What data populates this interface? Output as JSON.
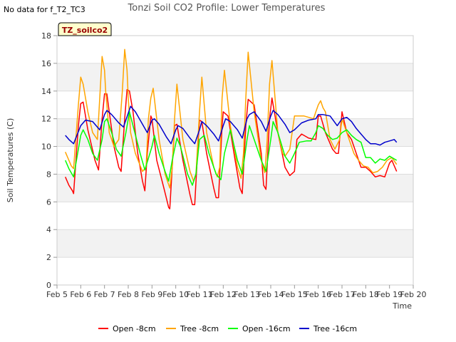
{
  "no_data_note": "No data for f_T2_TC3",
  "chart_data": {
    "type": "line",
    "title": "Tonzi Soil CO2 Profile: Lower Temperatures",
    "xlabel": "Time",
    "ylabel": "Soil Temperatures (C)",
    "badge": "TZ_soilco2",
    "xlim": [
      5,
      20
    ],
    "ylim": [
      0,
      18
    ],
    "grid": true,
    "legend_position": "bottom",
    "x_ticks": [
      {
        "v": 5,
        "label": "Feb 5"
      },
      {
        "v": 6,
        "label": "Feb 6"
      },
      {
        "v": 7,
        "label": "Feb 7"
      },
      {
        "v": 8,
        "label": "Feb 8"
      },
      {
        "v": 9,
        "label": "Feb 9"
      },
      {
        "v": 10,
        "label": "Feb 10"
      },
      {
        "v": 11,
        "label": "Feb 11"
      },
      {
        "v": 12,
        "label": "Feb 12"
      },
      {
        "v": 13,
        "label": "Feb 13"
      },
      {
        "v": 14,
        "label": "Feb 14"
      },
      {
        "v": 15,
        "label": "Feb 15"
      },
      {
        "v": 16,
        "label": "Feb 16"
      },
      {
        "v": 17,
        "label": "Feb 17"
      },
      {
        "v": 18,
        "label": "Feb 18"
      },
      {
        "v": 19,
        "label": "Feb 19"
      },
      {
        "v": 20,
        "label": "Feb 20"
      }
    ],
    "y_ticks": [
      0,
      2,
      4,
      6,
      8,
      10,
      12,
      14,
      16,
      18
    ],
    "series": [
      {
        "name": "Open -8cm",
        "color": "#ff0000",
        "x": [
          5.35,
          5.5,
          5.65,
          5.7,
          5.9,
          6.0,
          6.1,
          6.3,
          6.6,
          6.75,
          6.9,
          7.0,
          7.1,
          7.2,
          7.4,
          7.6,
          7.7,
          7.85,
          7.95,
          8.05,
          8.2,
          8.4,
          8.6,
          8.7,
          8.8,
          8.95,
          9.0,
          9.2,
          9.5,
          9.7,
          9.75,
          9.85,
          9.95,
          10.05,
          10.3,
          10.6,
          10.7,
          10.8,
          10.95,
          11.0,
          11.1,
          11.3,
          11.6,
          11.7,
          11.8,
          11.95,
          12.0,
          12.2,
          12.5,
          12.7,
          12.8,
          12.95,
          13.05,
          13.3,
          13.6,
          13.7,
          13.8,
          13.95,
          14.05,
          14.3,
          14.6,
          14.8,
          15.0,
          15.1,
          15.3,
          15.6,
          15.9,
          16.0,
          16.1,
          16.3,
          16.6,
          16.75,
          16.85,
          17.0,
          17.2,
          17.4,
          17.6,
          17.8,
          18.0,
          18.2,
          18.4,
          18.6,
          18.8,
          19.0,
          19.1,
          19.3
        ],
        "y": [
          7.8,
          7.2,
          6.8,
          6.6,
          11.5,
          13.1,
          13.2,
          11.2,
          9.0,
          8.3,
          12.0,
          13.8,
          13.8,
          12.5,
          10.0,
          8.5,
          8.2,
          12.0,
          14.1,
          14.0,
          12.5,
          9.5,
          7.5,
          6.8,
          9.5,
          12.2,
          12.0,
          9.0,
          7.0,
          5.6,
          5.5,
          8.5,
          11.5,
          11.6,
          9.0,
          6.5,
          5.8,
          5.8,
          10.5,
          11.9,
          11.8,
          9.5,
          7.0,
          6.3,
          6.3,
          11.5,
          12.5,
          12.2,
          9.0,
          7.0,
          6.6,
          11.5,
          13.4,
          13.0,
          9.5,
          7.2,
          6.9,
          12.0,
          13.5,
          11.0,
          8.5,
          7.9,
          8.2,
          10.5,
          10.9,
          10.6,
          10.5,
          12.2,
          12.2,
          11.0,
          9.8,
          9.5,
          9.5,
          12.5,
          11.0,
          10.5,
          9.5,
          8.5,
          8.5,
          8.2,
          7.8,
          7.9,
          7.8,
          8.8,
          9.0,
          8.2
        ]
      },
      {
        "name": "Tree -8cm",
        "color": "#ffa500",
        "x": [
          5.35,
          5.5,
          5.6,
          5.7,
          5.9,
          6.0,
          6.1,
          6.3,
          6.5,
          6.7,
          6.8,
          6.9,
          7.0,
          7.05,
          7.2,
          7.4,
          7.6,
          7.75,
          7.85,
          7.95,
          8.0,
          8.1,
          8.3,
          8.6,
          8.75,
          8.85,
          8.95,
          9.05,
          9.3,
          9.55,
          9.75,
          9.85,
          9.95,
          10.05,
          10.3,
          10.6,
          10.75,
          10.85,
          11.0,
          11.1,
          11.3,
          11.6,
          11.75,
          11.85,
          11.95,
          12.05,
          12.3,
          12.6,
          12.75,
          12.85,
          12.95,
          13.05,
          13.3,
          13.6,
          13.75,
          13.85,
          13.95,
          14.05,
          14.3,
          14.5,
          14.6,
          14.8,
          15.0,
          15.2,
          15.4,
          15.6,
          15.8,
          15.9,
          16.0,
          16.1,
          16.2,
          16.3,
          16.5,
          16.7,
          16.9,
          17.0,
          17.1,
          17.3,
          17.5,
          17.7,
          17.9,
          18.1,
          18.3,
          18.5,
          18.7,
          18.9,
          19.1,
          19.3
        ],
        "y": [
          9.6,
          9.0,
          8.6,
          8.4,
          13.0,
          15.0,
          14.5,
          12.5,
          11.0,
          10.5,
          13.5,
          16.5,
          15.5,
          14.0,
          11.0,
          10.0,
          10.5,
          14.0,
          17.0,
          15.5,
          13.5,
          11.0,
          9.5,
          8.2,
          8.5,
          12.0,
          13.5,
          14.2,
          10.5,
          8.0,
          7.0,
          8.5,
          12.0,
          14.5,
          10.5,
          8.2,
          7.5,
          8.0,
          12.5,
          15.0,
          11.0,
          8.5,
          7.8,
          8.5,
          13.5,
          15.5,
          11.5,
          8.5,
          7.7,
          9.5,
          13.5,
          16.8,
          12.5,
          9.0,
          8.1,
          10.5,
          14.5,
          16.2,
          11.0,
          9.5,
          9.3,
          9.8,
          12.2,
          12.2,
          12.2,
          12.1,
          12.0,
          12.5,
          13.0,
          13.3,
          12.8,
          12.5,
          10.5,
          9.8,
          10.5,
          12.0,
          11.5,
          10.5,
          9.5,
          9.0,
          8.6,
          8.5,
          8.1,
          8.2,
          8.5,
          9.0,
          9.2,
          8.7
        ]
      },
      {
        "name": "Open -16cm",
        "color": "#00ff00",
        "x": [
          5.35,
          5.5,
          5.7,
          6.0,
          6.1,
          6.3,
          6.5,
          6.7,
          6.9,
          7.0,
          7.1,
          7.3,
          7.5,
          7.7,
          7.9,
          8.05,
          8.2,
          8.5,
          8.7,
          9.0,
          9.1,
          9.3,
          9.55,
          9.7,
          9.85,
          10.05,
          10.2,
          10.5,
          10.7,
          10.85,
          11.0,
          11.2,
          11.4,
          11.7,
          11.9,
          12.05,
          12.3,
          12.6,
          12.8,
          13.0,
          13.1,
          13.3,
          13.6,
          13.8,
          14.0,
          14.1,
          14.3,
          14.6,
          14.8,
          15.0,
          15.2,
          15.5,
          15.7,
          15.9,
          16.0,
          16.2,
          16.4,
          16.6,
          16.8,
          17.0,
          17.2,
          17.4,
          17.6,
          17.8,
          18.0,
          18.2,
          18.4,
          18.6,
          18.8,
          19.0,
          19.3
        ],
        "y": [
          9.0,
          8.4,
          7.8,
          10.8,
          11.2,
          10.5,
          9.5,
          9.0,
          10.5,
          11.8,
          12.0,
          11.0,
          9.8,
          9.3,
          11.0,
          12.5,
          11.5,
          9.5,
          8.3,
          10.0,
          10.8,
          9.5,
          8.2,
          7.5,
          9.0,
          10.6,
          10.0,
          8.0,
          7.2,
          8.0,
          10.5,
          10.8,
          9.5,
          8.0,
          7.6,
          9.5,
          11.2,
          9.0,
          8.0,
          10.5,
          11.5,
          10.5,
          9.0,
          8.2,
          10.5,
          11.8,
          11.0,
          9.3,
          8.8,
          9.5,
          10.3,
          10.4,
          10.4,
          11.0,
          11.5,
          11.3,
          10.8,
          10.5,
          10.6,
          11.0,
          11.2,
          10.8,
          10.5,
          10.3,
          9.2,
          9.2,
          8.8,
          9.1,
          9.0,
          9.3,
          9.0
        ]
      },
      {
        "name": "Tree -16cm",
        "color": "#0000cc",
        "x": [
          5.35,
          5.5,
          5.7,
          6.0,
          6.2,
          6.5,
          6.8,
          7.0,
          7.1,
          7.3,
          7.6,
          7.8,
          8.0,
          8.1,
          8.3,
          8.6,
          8.8,
          9.0,
          9.1,
          9.3,
          9.6,
          9.8,
          10.0,
          10.1,
          10.3,
          10.6,
          10.8,
          11.0,
          11.1,
          11.3,
          11.6,
          11.8,
          12.0,
          12.1,
          12.3,
          12.6,
          12.8,
          13.0,
          13.1,
          13.3,
          13.6,
          13.8,
          14.0,
          14.1,
          14.3,
          14.6,
          14.8,
          15.0,
          15.3,
          15.6,
          15.9,
          16.0,
          16.2,
          16.5,
          16.8,
          17.0,
          17.2,
          17.4,
          17.6,
          17.8,
          18.0,
          18.2,
          18.4,
          18.6,
          18.8,
          19.0,
          19.2,
          19.3
        ],
        "y": [
          10.8,
          10.5,
          10.2,
          11.5,
          11.9,
          11.8,
          11.2,
          12.3,
          12.6,
          12.3,
          11.7,
          11.4,
          12.4,
          12.9,
          12.5,
          11.6,
          11.0,
          11.9,
          12.0,
          11.6,
          10.7,
          10.2,
          11.2,
          11.5,
          11.3,
          10.6,
          10.2,
          11.2,
          11.8,
          11.5,
          10.9,
          10.4,
          11.5,
          12.0,
          11.8,
          11.2,
          10.6,
          12.0,
          12.3,
          12.5,
          11.8,
          11.1,
          12.2,
          12.6,
          12.3,
          11.6,
          11.0,
          11.2,
          11.7,
          11.9,
          12.0,
          12.3,
          12.3,
          12.2,
          11.5,
          12.0,
          12.1,
          11.8,
          11.3,
          10.9,
          10.5,
          10.2,
          10.2,
          10.1,
          10.3,
          10.4,
          10.5,
          10.3
        ]
      }
    ]
  }
}
